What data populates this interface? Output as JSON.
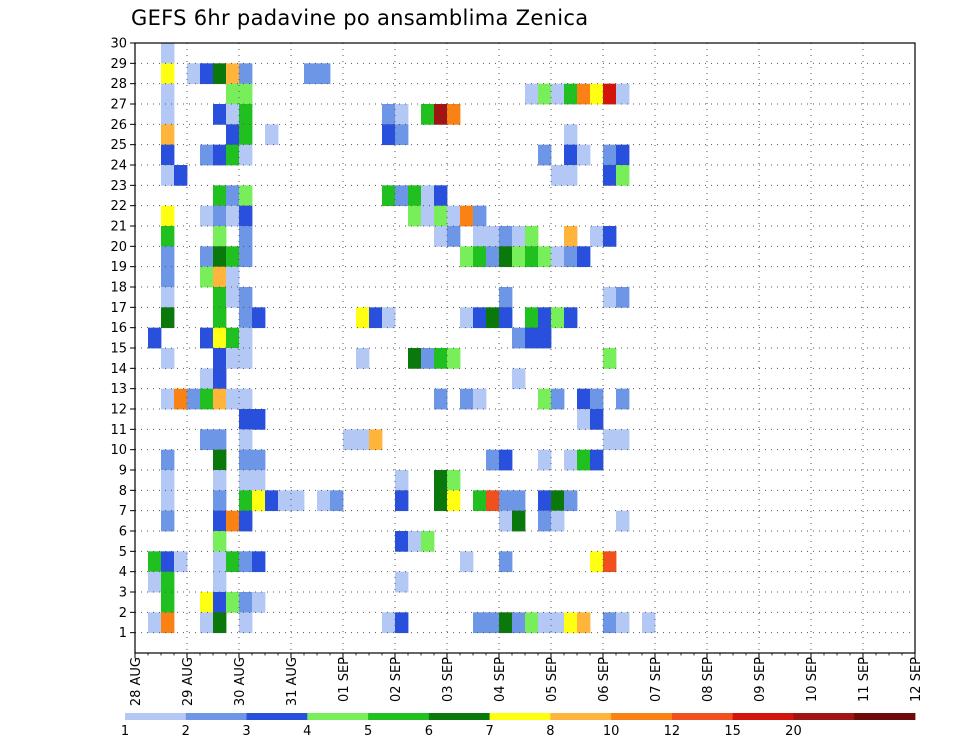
{
  "title": "GEFS 6hr padavine po ansamblima Zenica",
  "chart_data": {
    "type": "heatmap",
    "title": "GEFS 6hr padavine po ansamblima Zenica",
    "y_ticks": [
      "1",
      "2",
      "3",
      "4",
      "5",
      "6",
      "7",
      "8",
      "9",
      "10",
      "11",
      "12",
      "13",
      "14",
      "15",
      "16",
      "17",
      "18",
      "19",
      "20",
      "21",
      "22",
      "23",
      "24",
      "25",
      "26",
      "27",
      "28",
      "29",
      "30"
    ],
    "x_ticks": [
      "28 AUG",
      "29 AUG",
      "30 AUG",
      "31 AUG",
      "01 SEP",
      "02 SEP",
      "03 SEP",
      "04 SEP",
      "05 SEP",
      "06 SEP",
      "07 SEP",
      "08 SEP",
      "09 SEP",
      "10 SEP",
      "11 SEP",
      "12 SEP"
    ],
    "grid": true,
    "color_bins": [
      {
        "label": "1",
        "color": "#b4c8f5"
      },
      {
        "label": "2",
        "color": "#6e96e6"
      },
      {
        "label": "3",
        "color": "#2850dc"
      },
      {
        "label": "4",
        "color": "#78ef5a"
      },
      {
        "label": "5",
        "color": "#20c020"
      },
      {
        "label": "6",
        "color": "#0a780a"
      },
      {
        "label": "7",
        "color": "#ffff14"
      },
      {
        "label": "8",
        "color": "#ffb43c"
      },
      {
        "label": "10",
        "color": "#fa8214"
      },
      {
        "label": "12",
        "color": "#f0501e"
      },
      {
        "label": "15",
        "color": "#d2140a"
      },
      {
        "label": "20",
        "color": "#a01414"
      },
      {
        "label": "",
        "color": "#6e0a0a"
      }
    ],
    "cells": [
      [
        30,
        2,
        0
      ],
      [
        29,
        2,
        6
      ],
      [
        29,
        4,
        0
      ],
      [
        29,
        5,
        2
      ],
      [
        29,
        6,
        5
      ],
      [
        29,
        7,
        7
      ],
      [
        29,
        8,
        1
      ],
      [
        29,
        13,
        1
      ],
      [
        29,
        14,
        1
      ],
      [
        28,
        2,
        0
      ],
      [
        28,
        7,
        3
      ],
      [
        28,
        8,
        3
      ],
      [
        28,
        30,
        0
      ],
      [
        28,
        31,
        3
      ],
      [
        28,
        32,
        0
      ],
      [
        28,
        33,
        4
      ],
      [
        28,
        34,
        8
      ],
      [
        28,
        35,
        6
      ],
      [
        28,
        36,
        10
      ],
      [
        28,
        37,
        0
      ],
      [
        27,
        2,
        0
      ],
      [
        27,
        6,
        2
      ],
      [
        27,
        7,
        0
      ],
      [
        27,
        8,
        4
      ],
      [
        27,
        19,
        1
      ],
      [
        27,
        20,
        0
      ],
      [
        27,
        22,
        4
      ],
      [
        27,
        23,
        11
      ],
      [
        27,
        24,
        8
      ],
      [
        26,
        2,
        7
      ],
      [
        26,
        7,
        2
      ],
      [
        26,
        8,
        4
      ],
      [
        26,
        10,
        0
      ],
      [
        26,
        19,
        2
      ],
      [
        26,
        20,
        1
      ],
      [
        26,
        33,
        0
      ],
      [
        25,
        2,
        2
      ],
      [
        25,
        5,
        1
      ],
      [
        25,
        6,
        2
      ],
      [
        25,
        7,
        4
      ],
      [
        25,
        8,
        0
      ],
      [
        25,
        31,
        1
      ],
      [
        25,
        33,
        2
      ],
      [
        25,
        34,
        0
      ],
      [
        25,
        36,
        1
      ],
      [
        25,
        37,
        2
      ],
      [
        24,
        2,
        0
      ],
      [
        24,
        3,
        2
      ],
      [
        24,
        32,
        0
      ],
      [
        24,
        33,
        0
      ],
      [
        24,
        36,
        2
      ],
      [
        24,
        37,
        3
      ],
      [
        23,
        6,
        4
      ],
      [
        23,
        7,
        1
      ],
      [
        23,
        8,
        3
      ],
      [
        23,
        19,
        4
      ],
      [
        23,
        20,
        1
      ],
      [
        23,
        21,
        4
      ],
      [
        23,
        22,
        0
      ],
      [
        23,
        23,
        2
      ],
      [
        22,
        2,
        6
      ],
      [
        22,
        5,
        0
      ],
      [
        22,
        6,
        1
      ],
      [
        22,
        7,
        0
      ],
      [
        22,
        8,
        2
      ],
      [
        22,
        21,
        3
      ],
      [
        22,
        22,
        0
      ],
      [
        22,
        23,
        3
      ],
      [
        22,
        24,
        0
      ],
      [
        22,
        25,
        8
      ],
      [
        22,
        26,
        1
      ],
      [
        21,
        2,
        4
      ],
      [
        21,
        6,
        3
      ],
      [
        21,
        8,
        1
      ],
      [
        21,
        23,
        0
      ],
      [
        21,
        24,
        1
      ],
      [
        21,
        26,
        0
      ],
      [
        21,
        27,
        0
      ],
      [
        21,
        28,
        1
      ],
      [
        21,
        29,
        0
      ],
      [
        21,
        30,
        3
      ],
      [
        21,
        33,
        7
      ],
      [
        21,
        35,
        0
      ],
      [
        21,
        36,
        2
      ],
      [
        20,
        2,
        1
      ],
      [
        20,
        5,
        1
      ],
      [
        20,
        6,
        5
      ],
      [
        20,
        7,
        4
      ],
      [
        20,
        8,
        1
      ],
      [
        20,
        25,
        3
      ],
      [
        20,
        26,
        4
      ],
      [
        20,
        27,
        1
      ],
      [
        20,
        28,
        5
      ],
      [
        20,
        29,
        3
      ],
      [
        20,
        30,
        4
      ],
      [
        20,
        31,
        3
      ],
      [
        20,
        32,
        0
      ],
      [
        20,
        33,
        1
      ],
      [
        20,
        34,
        2
      ],
      [
        19,
        2,
        1
      ],
      [
        19,
        5,
        3
      ],
      [
        19,
        6,
        7
      ],
      [
        19,
        7,
        0
      ],
      [
        18,
        2,
        0
      ],
      [
        18,
        6,
        4
      ],
      [
        18,
        7,
        0
      ],
      [
        18,
        8,
        1
      ],
      [
        18,
        28,
        1
      ],
      [
        18,
        36,
        0
      ],
      [
        18,
        37,
        1
      ],
      [
        17,
        2,
        5
      ],
      [
        17,
        6,
        4
      ],
      [
        17,
        8,
        1
      ],
      [
        17,
        9,
        2
      ],
      [
        17,
        17,
        6
      ],
      [
        17,
        18,
        2
      ],
      [
        17,
        19,
        0
      ],
      [
        17,
        25,
        0
      ],
      [
        17,
        26,
        2
      ],
      [
        17,
        27,
        5
      ],
      [
        17,
        28,
        2
      ],
      [
        17,
        30,
        4
      ],
      [
        17,
        31,
        2
      ],
      [
        17,
        32,
        3
      ],
      [
        17,
        33,
        2
      ],
      [
        16,
        1,
        2
      ],
      [
        16,
        5,
        2
      ],
      [
        16,
        6,
        6
      ],
      [
        16,
        7,
        4
      ],
      [
        16,
        8,
        0
      ],
      [
        16,
        29,
        1
      ],
      [
        16,
        30,
        2
      ],
      [
        16,
        31,
        2
      ],
      [
        15,
        2,
        0
      ],
      [
        15,
        6,
        2
      ],
      [
        15,
        7,
        0
      ],
      [
        15,
        8,
        0
      ],
      [
        15,
        17,
        0
      ],
      [
        15,
        21,
        5
      ],
      [
        15,
        22,
        1
      ],
      [
        15,
        23,
        4
      ],
      [
        15,
        24,
        3
      ],
      [
        15,
        36,
        3
      ],
      [
        14,
        5,
        0
      ],
      [
        14,
        6,
        2
      ],
      [
        14,
        29,
        0
      ],
      [
        13,
        2,
        0
      ],
      [
        13,
        3,
        8
      ],
      [
        13,
        4,
        1
      ],
      [
        13,
        5,
        4
      ],
      [
        13,
        6,
        7
      ],
      [
        13,
        7,
        0
      ],
      [
        13,
        8,
        0
      ],
      [
        13,
        23,
        1
      ],
      [
        13,
        25,
        1
      ],
      [
        13,
        26,
        0
      ],
      [
        13,
        31,
        3
      ],
      [
        13,
        32,
        1
      ],
      [
        13,
        34,
        2
      ],
      [
        13,
        35,
        1
      ],
      [
        13,
        37,
        1
      ],
      [
        12,
        8,
        2
      ],
      [
        12,
        9,
        2
      ],
      [
        12,
        34,
        0
      ],
      [
        12,
        35,
        2
      ],
      [
        11,
        5,
        1
      ],
      [
        11,
        6,
        1
      ],
      [
        11,
        8,
        0
      ],
      [
        11,
        16,
        0
      ],
      [
        11,
        17,
        0
      ],
      [
        11,
        18,
        7
      ],
      [
        11,
        36,
        0
      ],
      [
        11,
        37,
        0
      ],
      [
        10,
        2,
        1
      ],
      [
        10,
        6,
        5
      ],
      [
        10,
        8,
        1
      ],
      [
        10,
        9,
        1
      ],
      [
        10,
        27,
        1
      ],
      [
        10,
        28,
        2
      ],
      [
        10,
        31,
        0
      ],
      [
        10,
        33,
        0
      ],
      [
        10,
        34,
        4
      ],
      [
        10,
        35,
        2
      ],
      [
        9,
        2,
        0
      ],
      [
        9,
        6,
        0
      ],
      [
        9,
        8,
        0
      ],
      [
        9,
        9,
        0
      ],
      [
        9,
        20,
        0
      ],
      [
        9,
        23,
        5
      ],
      [
        9,
        24,
        3
      ],
      [
        8,
        2,
        0
      ],
      [
        8,
        6,
        1
      ],
      [
        8,
        8,
        4
      ],
      [
        8,
        9,
        6
      ],
      [
        8,
        10,
        2
      ],
      [
        8,
        11,
        0
      ],
      [
        8,
        12,
        0
      ],
      [
        8,
        14,
        0
      ],
      [
        8,
        15,
        1
      ],
      [
        8,
        20,
        2
      ],
      [
        8,
        23,
        5
      ],
      [
        8,
        24,
        6
      ],
      [
        8,
        26,
        4
      ],
      [
        8,
        27,
        9
      ],
      [
        8,
        28,
        1
      ],
      [
        8,
        29,
        1
      ],
      [
        8,
        31,
        2
      ],
      [
        8,
        32,
        5
      ],
      [
        8,
        33,
        1
      ],
      [
        7,
        2,
        1
      ],
      [
        7,
        6,
        2
      ],
      [
        7,
        7,
        8
      ],
      [
        7,
        8,
        2
      ],
      [
        7,
        28,
        0
      ],
      [
        7,
        29,
        5
      ],
      [
        7,
        31,
        1
      ],
      [
        7,
        32,
        0
      ],
      [
        7,
        37,
        0
      ],
      [
        6,
        6,
        3
      ],
      [
        6,
        20,
        2
      ],
      [
        6,
        21,
        0
      ],
      [
        6,
        22,
        3
      ],
      [
        5,
        1,
        4
      ],
      [
        5,
        2,
        2
      ],
      [
        5,
        3,
        0
      ],
      [
        5,
        6,
        0
      ],
      [
        5,
        7,
        4
      ],
      [
        5,
        8,
        1
      ],
      [
        5,
        9,
        2
      ],
      [
        5,
        25,
        0
      ],
      [
        5,
        28,
        1
      ],
      [
        5,
        35,
        6
      ],
      [
        5,
        36,
        9
      ],
      [
        4,
        1,
        0
      ],
      [
        4,
        2,
        4
      ],
      [
        4,
        6,
        0
      ],
      [
        4,
        20,
        0
      ],
      [
        3,
        2,
        4
      ],
      [
        3,
        5,
        6
      ],
      [
        3,
        6,
        2
      ],
      [
        3,
        7,
        3
      ],
      [
        3,
        8,
        1
      ],
      [
        3,
        9,
        0
      ],
      [
        2,
        1,
        0
      ],
      [
        2,
        2,
        8
      ],
      [
        2,
        5,
        0
      ],
      [
        2,
        6,
        5
      ],
      [
        2,
        8,
        0
      ],
      [
        2,
        19,
        0
      ],
      [
        2,
        20,
        2
      ],
      [
        2,
        26,
        1
      ],
      [
        2,
        27,
        1
      ],
      [
        2,
        28,
        5
      ],
      [
        2,
        29,
        1
      ],
      [
        2,
        30,
        3
      ],
      [
        2,
        31,
        0
      ],
      [
        2,
        32,
        0
      ],
      [
        2,
        33,
        6
      ],
      [
        2,
        34,
        7
      ],
      [
        2,
        36,
        1
      ],
      [
        2,
        37,
        0
      ],
      [
        2,
        39,
        0
      ]
    ]
  }
}
